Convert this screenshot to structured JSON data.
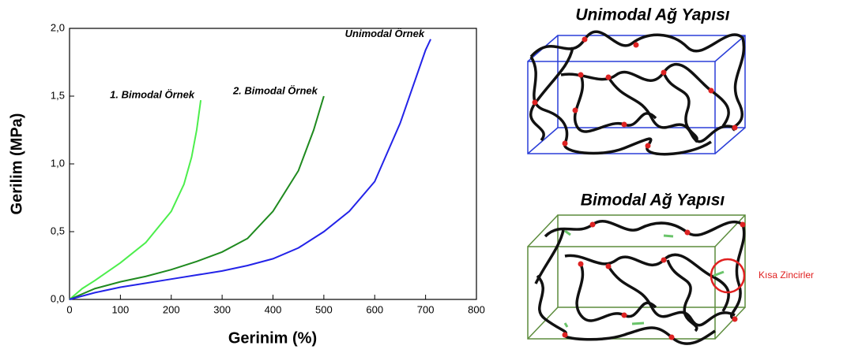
{
  "chart_data": {
    "type": "line",
    "x_label": "Gerinim (%)",
    "y_label": "Gerilim (MPa)",
    "xlim": [
      0,
      800
    ],
    "xticks": [
      0,
      100,
      200,
      300,
      400,
      500,
      600,
      700,
      800
    ],
    "ylim": [
      0,
      2.0
    ],
    "yticks": [
      {
        "value": 0,
        "label": "0,0"
      },
      {
        "value": 0.5,
        "label": "0,5"
      },
      {
        "value": 1.0,
        "label": "1,0"
      },
      {
        "value": 1.5,
        "label": "1,5"
      },
      {
        "value": 2.0,
        "label": "2,0"
      }
    ],
    "grid": false,
    "series": [
      {
        "name": "1. Bimodal Örnek",
        "color": "#4cee4c",
        "x": [
          0,
          25,
          50,
          100,
          150,
          200,
          225,
          240,
          250,
          258
        ],
        "values": [
          0,
          0.08,
          0.14,
          0.27,
          0.42,
          0.65,
          0.85,
          1.05,
          1.25,
          1.47
        ]
      },
      {
        "name": "2. Bimodal Örnek",
        "color": "#1f8a1f",
        "x": [
          0,
          50,
          100,
          150,
          200,
          250,
          300,
          350,
          400,
          450,
          480,
          500
        ],
        "values": [
          0,
          0.08,
          0.13,
          0.17,
          0.22,
          0.28,
          0.35,
          0.45,
          0.65,
          0.95,
          1.25,
          1.5
        ]
      },
      {
        "name": "Unimodal Örnek",
        "color": "#2323e8",
        "x": [
          0,
          50,
          100,
          150,
          200,
          250,
          300,
          350,
          400,
          450,
          500,
          550,
          600,
          650,
          700,
          710
        ],
        "values": [
          0,
          0.05,
          0.09,
          0.12,
          0.15,
          0.18,
          0.21,
          0.25,
          0.3,
          0.38,
          0.5,
          0.65,
          0.87,
          1.3,
          1.84,
          1.92
        ]
      }
    ]
  },
  "diagram": {
    "unimodal_title": "Unimodal Ağ Yapısı",
    "bimodal_title": "Bimodal Ağ Yapısı",
    "short_chains_label": "Kısa Zincirler"
  }
}
